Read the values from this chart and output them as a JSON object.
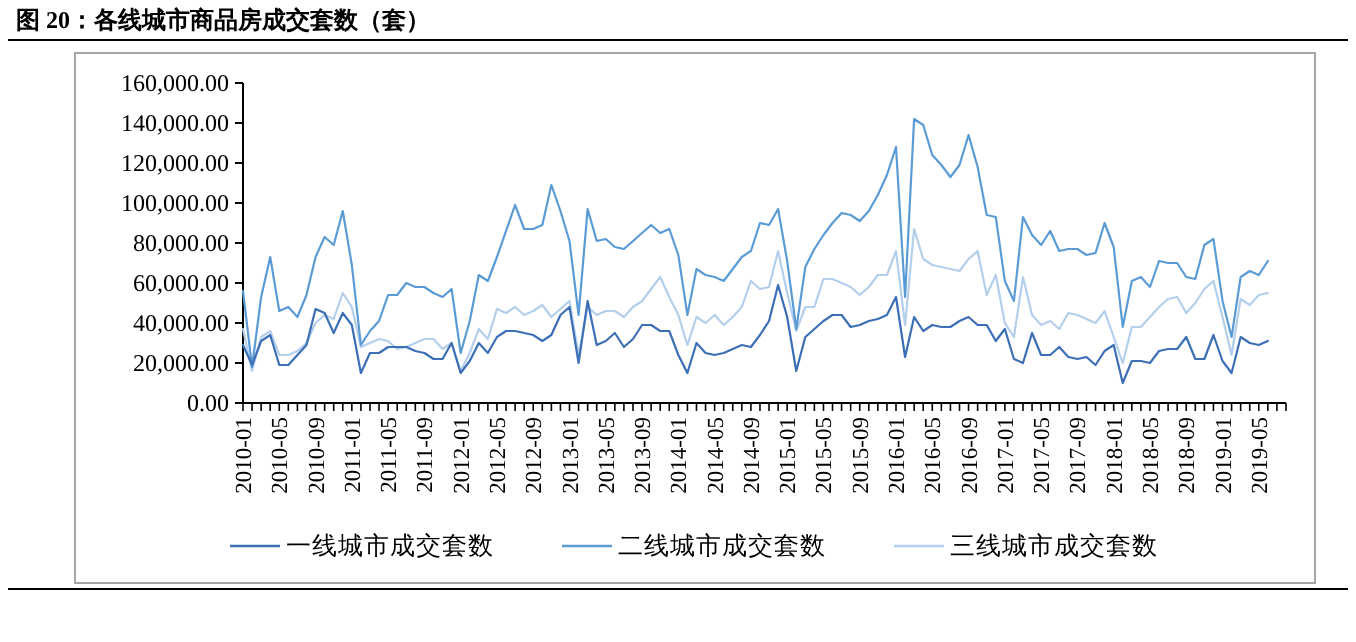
{
  "chart_data": {
    "type": "line",
    "title": "图 20：各线城市商品房成交套数（套）",
    "categories": [
      "2010-01",
      null,
      null,
      null,
      "2010-05",
      null,
      null,
      null,
      "2010-09",
      null,
      null,
      null,
      "2011-01",
      null,
      null,
      null,
      "2011-05",
      null,
      null,
      null,
      "2011-09",
      null,
      null,
      null,
      "2012-01",
      null,
      null,
      null,
      "2012-05",
      null,
      null,
      null,
      "2012-09",
      null,
      null,
      null,
      "2013-01",
      null,
      null,
      null,
      "2013-05",
      null,
      null,
      null,
      "2013-09",
      null,
      null,
      null,
      "2014-01",
      null,
      null,
      null,
      "2014-05",
      null,
      null,
      null,
      "2014-09",
      null,
      null,
      null,
      "2015-01",
      null,
      null,
      null,
      "2015-05",
      null,
      null,
      null,
      "2015-09",
      null,
      null,
      null,
      "2016-01",
      null,
      null,
      null,
      "2016-05",
      null,
      null,
      null,
      "2016-09",
      null,
      null,
      null,
      "2017-01",
      null,
      null,
      null,
      "2017-05",
      null,
      null,
      null,
      "2017-09",
      null,
      null,
      null,
      "2018-01",
      null,
      null,
      null,
      "2018-05",
      null,
      null,
      null,
      "2018-09",
      null,
      null,
      null,
      "2019-01",
      null,
      null,
      null,
      "2019-05",
      null,
      null,
      null
    ],
    "series": [
      {
        "name": "一线城市成交套数",
        "color": "#3d6fb6",
        "values": [
          29000,
          19000,
          31000,
          34000,
          19000,
          19000,
          24000,
          29000,
          47000,
          45000,
          35000,
          45000,
          39000,
          15000,
          25000,
          25000,
          28000,
          28000,
          28000,
          26000,
          25000,
          22000,
          22000,
          30000,
          15000,
          21000,
          30000,
          25000,
          33000,
          36000,
          36000,
          35000,
          34000,
          31000,
          34000,
          44000,
          48000,
          20000,
          51000,
          29000,
          31000,
          35000,
          28000,
          32000,
          39000,
          39000,
          36000,
          36000,
          24000,
          15000,
          30000,
          25000,
          24000,
          25000,
          27000,
          29000,
          28000,
          34000,
          41000,
          59000,
          43000,
          16000,
          33000,
          37000,
          41000,
          44000,
          44000,
          38000,
          39000,
          41000,
          42000,
          44000,
          53000,
          23000,
          43000,
          36000,
          39000,
          38000,
          38000,
          41000,
          43000,
          39000,
          39000,
          31000,
          37000,
          22000,
          20000,
          35000,
          24000,
          24000,
          28000,
          23000,
          22000,
          23000,
          19000,
          26000,
          29000,
          10000,
          21000,
          21000,
          20000,
          26000,
          27000,
          27000,
          33000,
          22000,
          22000,
          34000,
          21000,
          15000,
          33000,
          30000,
          29000,
          31000,
          null,
          null
        ]
      },
      {
        "name": "二线城市成交套数",
        "color": "#5b9bd5",
        "values": [
          56000,
          18000,
          53000,
          73000,
          46000,
          48000,
          43000,
          54000,
          73000,
          83000,
          79000,
          96000,
          69000,
          29000,
          36000,
          41000,
          54000,
          54000,
          60000,
          58000,
          58000,
          55000,
          53000,
          57000,
          25000,
          41000,
          64000,
          61000,
          73000,
          86000,
          99000,
          87000,
          87000,
          89000,
          109000,
          96000,
          81000,
          44000,
          97000,
          81000,
          82000,
          78000,
          77000,
          81000,
          85000,
          89000,
          85000,
          87000,
          74000,
          44000,
          67000,
          64000,
          63000,
          61000,
          67000,
          73000,
          76000,
          90000,
          89000,
          97000,
          71000,
          37000,
          68000,
          77000,
          84000,
          90000,
          95000,
          94000,
          91000,
          96000,
          104000,
          114000,
          128000,
          53000,
          142000,
          139000,
          124000,
          119000,
          113000,
          119000,
          134000,
          118000,
          94000,
          93000,
          61000,
          51000,
          93000,
          84000,
          79000,
          86000,
          76000,
          77000,
          77000,
          74000,
          75000,
          90000,
          78000,
          38000,
          61000,
          63000,
          58000,
          71000,
          70000,
          70000,
          63000,
          62000,
          79000,
          82000,
          51000,
          33000,
          63000,
          66000,
          64000,
          71000,
          null,
          null
        ]
      },
      {
        "name": "三线城市成交套数",
        "color": "#b4cfec",
        "values": [
          37000,
          16000,
          33000,
          36000,
          24000,
          24000,
          26000,
          30000,
          40000,
          44000,
          42000,
          55000,
          48000,
          28000,
          30000,
          32000,
          31000,
          27000,
          28000,
          30000,
          32000,
          32000,
          27000,
          30000,
          16000,
          25000,
          37000,
          32000,
          47000,
          45000,
          48000,
          44000,
          46000,
          49000,
          43000,
          47000,
          51000,
          24000,
          48000,
          44000,
          46000,
          46000,
          43000,
          48000,
          51000,
          57000,
          63000,
          53000,
          44000,
          29000,
          43000,
          40000,
          44000,
          39000,
          43000,
          48000,
          61000,
          57000,
          58000,
          76000,
          55000,
          36000,
          48000,
          48000,
          62000,
          62000,
          60000,
          58000,
          54000,
          58000,
          64000,
          64000,
          76000,
          39000,
          87000,
          72000,
          69000,
          68000,
          67000,
          66000,
          72000,
          76000,
          54000,
          64000,
          40000,
          33000,
          63000,
          44000,
          39000,
          41000,
          37000,
          45000,
          44000,
          42000,
          40000,
          46000,
          33000,
          20000,
          38000,
          38000,
          43000,
          48000,
          52000,
          53000,
          45000,
          50000,
          57000,
          61000,
          43000,
          24000,
          52000,
          49000,
          54000,
          55000,
          null,
          null
        ]
      }
    ],
    "ylim": [
      0,
      160000
    ],
    "yticks": [
      {
        "value": 0,
        "label": "0.00"
      },
      {
        "value": 20000,
        "label": "20,000.00"
      },
      {
        "value": 40000,
        "label": "40,000.00"
      },
      {
        "value": 60000,
        "label": "60,000.00"
      },
      {
        "value": 80000,
        "label": "80,000.00"
      },
      {
        "value": 100000,
        "label": "100,000.00"
      },
      {
        "value": 120000,
        "label": "120,000.00"
      },
      {
        "value": 140000,
        "label": "140,000.00"
      },
      {
        "value": 160000,
        "label": "160,000.00"
      }
    ],
    "legend": "bottom",
    "line_style": "solid"
  }
}
